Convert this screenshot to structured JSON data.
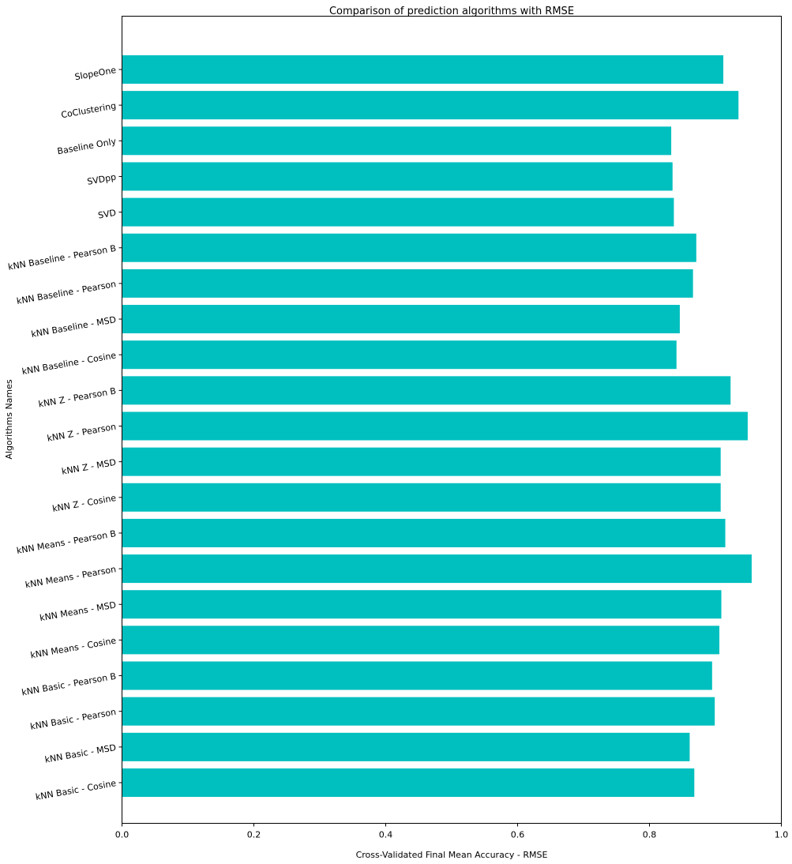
{
  "chart_data": {
    "type": "bar",
    "orientation": "horizontal",
    "title": "Comparison of prediction algorithms with RMSE",
    "xlabel": "Cross-Validated Final Mean Accuracy - RMSE",
    "ylabel": "Algorithms Names",
    "xlim": [
      0,
      1.0
    ],
    "xticks": [
      "0.0",
      "0.2",
      "0.4",
      "0.6",
      "0.8",
      "1.0"
    ],
    "grid": false,
    "bar_color": "#00bfbf",
    "categories": [
      "kNN Basic - Cosine",
      "kNN Basic - MSD",
      "kNN Basic - Pearson",
      "kNN Basic - Pearson B",
      "kNN Means - Cosine",
      "kNN Means - MSD",
      "kNN Means - Pearson",
      "kNN Means - Pearson B",
      "kNN Z - Cosine",
      "kNN Z - MSD",
      "kNN Z - Pearson",
      "kNN Z - Pearson B",
      "kNN Baseline - Cosine",
      "kNN Baseline - MSD",
      "kNN Baseline - Pearson",
      "kNN Baseline - Pearson B",
      "SVD",
      "SVDpp",
      "Baseline Only",
      "CoClustering",
      "SlopeOne"
    ],
    "values": [
      0.868,
      0.861,
      0.899,
      0.895,
      0.906,
      0.909,
      0.955,
      0.915,
      0.908,
      0.908,
      0.949,
      0.923,
      0.841,
      0.846,
      0.866,
      0.871,
      0.837,
      0.835,
      0.833,
      0.935,
      0.912
    ]
  }
}
